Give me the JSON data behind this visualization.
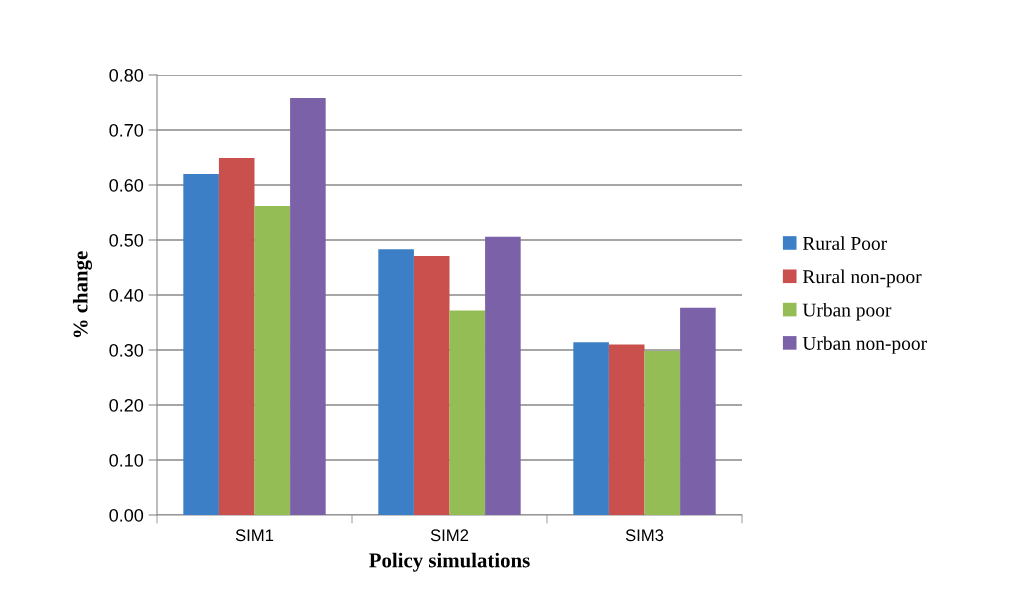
{
  "chart_data": {
    "type": "bar",
    "xlabel": "Policy simulations",
    "ylabel": "% change",
    "categories": [
      "SIM1",
      "SIM2",
      "SIM3"
    ],
    "series": [
      {
        "name": "Rural Poor",
        "color": "#3d7fc6",
        "values": [
          0.62,
          0.483,
          0.314
        ]
      },
      {
        "name": "Rural non-poor",
        "color": "#c9504d",
        "values": [
          0.649,
          0.471,
          0.31
        ]
      },
      {
        "name": "Urban poor",
        "color": "#95bd55",
        "values": [
          0.562,
          0.372,
          0.298
        ]
      },
      {
        "name": "Urban non-poor",
        "color": "#7b62a8",
        "values": [
          0.758,
          0.506,
          0.377
        ]
      }
    ],
    "ylim": [
      0,
      0.8
    ],
    "yticks": [
      {
        "value": 0,
        "label": "0.00"
      },
      {
        "value": 0.1,
        "label": "0.10"
      },
      {
        "value": 0.2,
        "label": "0.20"
      },
      {
        "value": 0.3,
        "label": "0.30"
      },
      {
        "value": 0.4,
        "label": "0.40"
      },
      {
        "value": 0.5,
        "label": "0.50"
      },
      {
        "value": 0.6,
        "label": "0.60"
      },
      {
        "value": 0.7,
        "label": "0.70"
      },
      {
        "value": 0.8,
        "label": "0.80"
      }
    ],
    "grid": "y",
    "legend": "right"
  }
}
